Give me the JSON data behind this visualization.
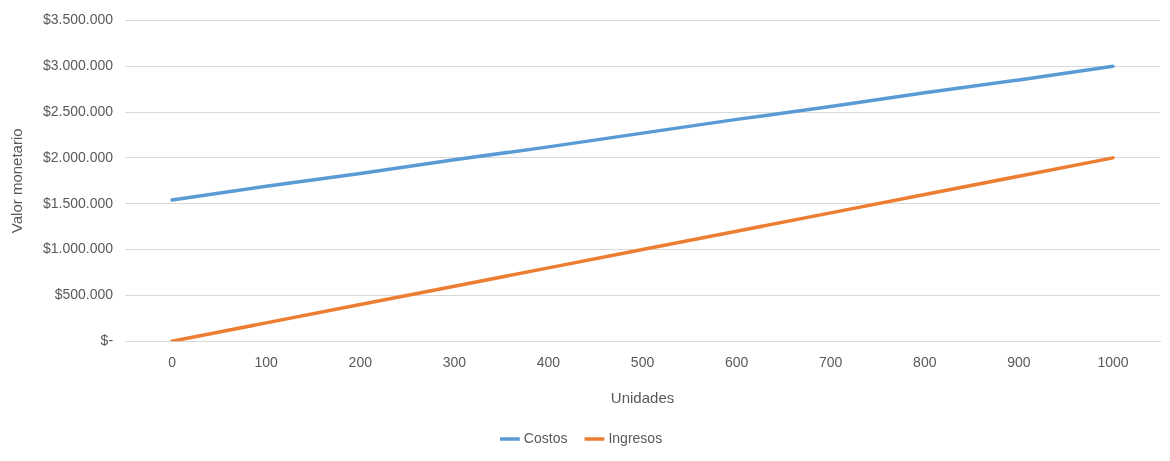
{
  "chart_data": {
    "type": "line",
    "xlabel": "Unidades",
    "ylabel": "Valor monetario",
    "categories": [
      "0",
      "100",
      "200",
      "300",
      "400",
      "500",
      "600",
      "700",
      "800",
      "900",
      "1000"
    ],
    "series": [
      {
        "name": "Costos",
        "color": "#5b9bd5",
        "values": [
          1540000,
          1690000,
          1830000,
          1980000,
          2120000,
          2270000,
          2420000,
          2560000,
          2710000,
          2850000,
          3000000
        ]
      },
      {
        "name": "Ingresos",
        "color": "#ed7d31",
        "values": [
          0,
          200000,
          400000,
          600000,
          800000,
          1000000,
          1200000,
          1400000,
          1600000,
          1800000,
          2000000
        ]
      }
    ],
    "ylim": [
      0,
      3500000
    ],
    "yticks": [
      {
        "value": 0,
        "label": "$-"
      },
      {
        "value": 500000,
        "label": "$500.000"
      },
      {
        "value": 1000000,
        "label": "$1.000.000"
      },
      {
        "value": 1500000,
        "label": "$1.500.000"
      },
      {
        "value": 2000000,
        "label": "$2.000.000"
      },
      {
        "value": 2500000,
        "label": "$2.500.000"
      },
      {
        "value": 3000000,
        "label": "$3.000.000"
      },
      {
        "value": 3500000,
        "label": "$3.500.000"
      }
    ],
    "grid": "y",
    "legend": "bottom",
    "marker": "none",
    "line_style": "solid"
  }
}
